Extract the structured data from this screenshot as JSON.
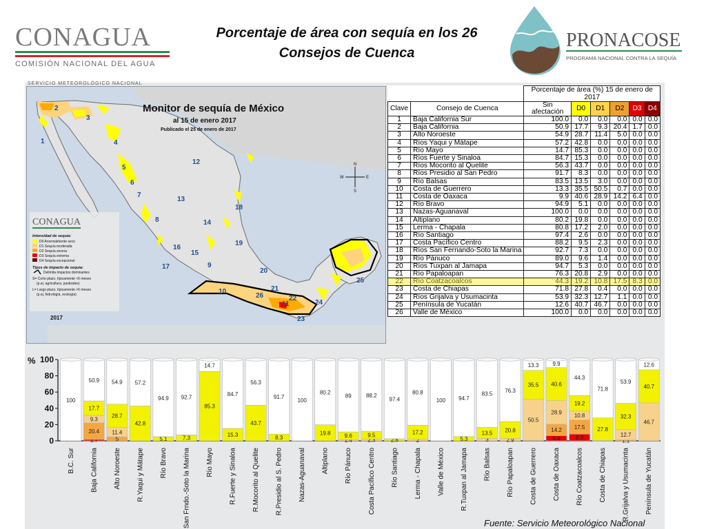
{
  "header": {
    "title_line1": "Porcentaje de área con sequía en los 26",
    "title_line2": "Consejos de Cuenca",
    "conagua_logo": "CONAGUA",
    "conagua_sub": "COMISIÓN NACIONAL DEL AGUA",
    "pronacose_logo": "PRONACOSE",
    "pronacose_sub": "PROGRAMA NACIONAL CONTRA LA SEQUÍA"
  },
  "map": {
    "service_label": "SERVICIO METEOROLÓGICO NACIONAL",
    "title": "Monitor de sequía de México",
    "date": "al 15 de enero 2017",
    "published": "Publicado el 25 de enero de 2017",
    "legend_logo": "CONAGUA",
    "legend_title": "Intensidad de sequía:",
    "legend_items": [
      "D0 Anormalmente seco",
      "D1 Sequía moderada",
      "D2 Sequía severa",
      "D3 Sequía extrema",
      "D4 Sequía excepcional"
    ],
    "legend_colors": [
      "#ffff00",
      "#fcd37f",
      "#ffaa00",
      "#e60000",
      "#730000"
    ],
    "impact_title": "Tipos de impacto de sequía:",
    "impact_line": "Delimita impactos dominantes",
    "impact_s": "S= Corto plazo, típicamente <6 meses",
    "impact_s2": "(p.ej. agricultura, pastizales)",
    "impact_l": "L= Largo plazo, típicamente >6 meses",
    "impact_l2": "(p.ej. hidrología, ecología)",
    "year": "2017",
    "region_numbers": [
      "1",
      "2",
      "3",
      "4",
      "5",
      "6",
      "7",
      "8",
      "9",
      "10",
      "11",
      "12",
      "13",
      "14",
      "15",
      "16",
      "17",
      "18",
      "19",
      "20",
      "21",
      "22",
      "23",
      "24",
      "25",
      "26"
    ],
    "compass": [
      "N",
      "E",
      "S",
      "W"
    ]
  },
  "table": {
    "header_group": "Porcentaje de área (%) 15 de enero de 2017",
    "col_clave": "Clave",
    "col_consejo": "Consejo de Cuenca",
    "col_sin": "Sin afectación",
    "cols": [
      "D0",
      "D1",
      "D2",
      "D3",
      "D4"
    ],
    "rows": [
      [
        "1",
        "Baja California Sur",
        "100.0",
        "0.0",
        "0.0",
        "0.0",
        "0.0",
        "0.0"
      ],
      [
        "2",
        "Baja California",
        "50.9",
        "17.7",
        "9.3",
        "20.4",
        "1.7",
        "0.0"
      ],
      [
        "3",
        "Alto Noroeste",
        "54.9",
        "28.7",
        "11.4",
        "5.0",
        "0.0",
        "0.0"
      ],
      [
        "4",
        "Ríos Yaqui y Mátape",
        "57.2",
        "42.8",
        "0.0",
        "0.0",
        "0.0",
        "0.0"
      ],
      [
        "5",
        "Río Mayo",
        "14.7",
        "85.3",
        "0.0",
        "0.0",
        "0.0",
        "0.0"
      ],
      [
        "6",
        "Ríos Fuerte y Sinaloa",
        "84.7",
        "15.3",
        "0.0",
        "0.0",
        "0.0",
        "0.0"
      ],
      [
        "7",
        "Ríos Mocorito al Quelite",
        "56.3",
        "43.7",
        "0.0",
        "0.0",
        "0.0",
        "0.0"
      ],
      [
        "8",
        "Ríos Presidio al San Pedro",
        "91.7",
        "8.3",
        "0.0",
        "0.0",
        "0.0",
        "0.0"
      ],
      [
        "9",
        "Río Balsas",
        "83.5",
        "13.5",
        "3.0",
        "0.0",
        "0.0",
        "0.0"
      ],
      [
        "10",
        "Costa  de Guerrero",
        "13.3",
        "35.5",
        "50.5",
        "0.7",
        "0.0",
        "0.0"
      ],
      [
        "11",
        "Costa de Oaxaca",
        "9.9",
        "40.6",
        "28.9",
        "14.2",
        "6.4",
        "0.0"
      ],
      [
        "12",
        "Río Bravo",
        "94.9",
        "5.1",
        "0.0",
        "0.0",
        "0.0",
        "0.0"
      ],
      [
        "13",
        "Nazas-Aguanaval",
        "100.0",
        "0.0",
        "0.0",
        "0.0",
        "0.0",
        "0.0"
      ],
      [
        "14",
        "Altiplano",
        "80.2",
        "19.8",
        "0.0",
        "0.0",
        "0.0",
        "0.0"
      ],
      [
        "15",
        "Lerma - Chapala",
        "80.8",
        "17.2",
        "2.0",
        "0.0",
        "0.0",
        "0.0"
      ],
      [
        "16",
        "Río Santiago",
        "97.4",
        "2.6",
        "0.0",
        "0.0",
        "0.0",
        "0.0"
      ],
      [
        "17",
        "Costa Pacífico Centro",
        "88.2",
        "9.5",
        "2.3",
        "0.0",
        "0.0",
        "0.0"
      ],
      [
        "18",
        "Ríos San Fernando-Soto la Marina",
        "92.7",
        "7.3",
        "0.0",
        "0.0",
        "0.0",
        "0.0"
      ],
      [
        "19",
        "Río Pánuco",
        "89.0",
        "9.6",
        "1.4",
        "0.0",
        "0.0",
        "0.0"
      ],
      [
        "20",
        "Ríos Tuxpan al Jamapa",
        "94.7",
        "5.3",
        "0.0",
        "0.0",
        "0.0",
        "0.0"
      ],
      [
        "21",
        "Río Papaloapan",
        "76.3",
        "20.8",
        "2.9",
        "0.0",
        "0.0",
        "0.0"
      ],
      [
        "22",
        "Río Coatzacoalcos",
        "44.3",
        "19.2",
        "10.8",
        "17.5",
        "8.3",
        "0.0"
      ],
      [
        "23",
        "Costa de Chiapas",
        "71.8",
        "27.8",
        "0.4",
        "0.0",
        "0.0",
        "0.0"
      ],
      [
        "24",
        "Ríos Grijalva y Usumacinta",
        "53.9",
        "32.3",
        "12.7",
        "1.1",
        "0.0",
        "0.0"
      ],
      [
        "25",
        "Península de Yucatán",
        "12.6",
        "40.7",
        "46.7",
        "0.0",
        "0.0",
        "0.0"
      ],
      [
        "26",
        "Valle de México",
        "100.0",
        "0.0",
        "0.0",
        "0.0",
        "0.0",
        "0.0"
      ]
    ],
    "highlight_row": 21
  },
  "chart_data": {
    "type": "bar",
    "stacked": true,
    "ylabel": "%",
    "ylim": [
      0,
      100
    ],
    "yticks": [
      0,
      20,
      40,
      60,
      80,
      100
    ],
    "grid": false,
    "categories": [
      "B.C. Sur",
      "Baja California",
      "Alto Noroeste",
      "R.Yaqui y Mátape",
      "Río Bravo",
      "R.San Frndo.-Soto la Marina",
      "Río Mayo",
      "R.Fuerte y Sinaloa",
      "R.Mocorito al Quelite",
      "R.Presidio al S. Pedro",
      "Nazas-Aguanaval",
      "Altiplano",
      "Río Pánuco",
      "Costa Pacífico Centro",
      "Río Santiago",
      "Lerma - Chapala",
      "Valle de México",
      "R.Tuxpan al Jamapa",
      "Río Balsas",
      "Río Papaloapan",
      "Costa de Guerrero",
      "Costa de Oaxaca",
      "Río Coatzacoalcos",
      "Costa de Chiapas",
      "R.Grijalva y Usumacinta",
      "Península de Yucatán"
    ],
    "series": [
      {
        "name": "D4",
        "color": "#730000",
        "values": [
          0,
          0,
          0,
          0,
          0,
          0,
          0,
          0,
          0,
          0,
          0,
          0,
          0,
          0,
          0,
          0,
          0,
          0,
          0,
          0,
          0,
          0,
          0,
          0,
          0,
          0
        ]
      },
      {
        "name": "D3",
        "color": "#e60000",
        "values": [
          0,
          1.7,
          0,
          0,
          0,
          0,
          0,
          0,
          0,
          0,
          0,
          0,
          0,
          0,
          0,
          0,
          0,
          0,
          0,
          0,
          0,
          6.4,
          8.3,
          0,
          0,
          0
        ]
      },
      {
        "name": "D2",
        "color": "#f4a641",
        "values": [
          0,
          20.4,
          5.0,
          0,
          0,
          0,
          0,
          0,
          0,
          0,
          0,
          0,
          0,
          0,
          0,
          0,
          0,
          0,
          0,
          0,
          0.7,
          14.2,
          17.5,
          0,
          1.1,
          0
        ]
      },
      {
        "name": "D1",
        "color": "#f7d28c",
        "values": [
          0,
          9.3,
          11.4,
          0,
          0,
          0,
          0,
          0,
          0,
          0,
          0,
          0,
          1.4,
          2.3,
          0,
          2.0,
          0,
          0,
          3.0,
          2.9,
          50.5,
          28.9,
          10.8,
          0.4,
          12.7,
          46.7
        ]
      },
      {
        "name": "D0",
        "color": "#f2f200",
        "values": [
          0,
          17.7,
          28.7,
          42.8,
          5.1,
          7.3,
          85.3,
          15.3,
          43.7,
          8.3,
          0,
          19.8,
          9.6,
          9.5,
          2.6,
          17.2,
          0,
          5.3,
          13.5,
          20.8,
          35.5,
          40.6,
          19.2,
          27.8,
          32.3,
          40.7
        ]
      },
      {
        "name": "Sin afectación",
        "color": "#ffffff",
        "values": [
          100.0,
          50.9,
          54.9,
          57.2,
          94.9,
          92.7,
          14.7,
          84.7,
          56.3,
          91.7,
          100.0,
          80.2,
          89.0,
          88.2,
          97.4,
          80.8,
          100.0,
          94.7,
          83.5,
          76.3,
          13.3,
          9.9,
          44.3,
          71.8,
          53.9,
          12.6
        ]
      }
    ]
  },
  "footer": {
    "source": "Fuente: Servicio Meteorológico Nacional"
  }
}
